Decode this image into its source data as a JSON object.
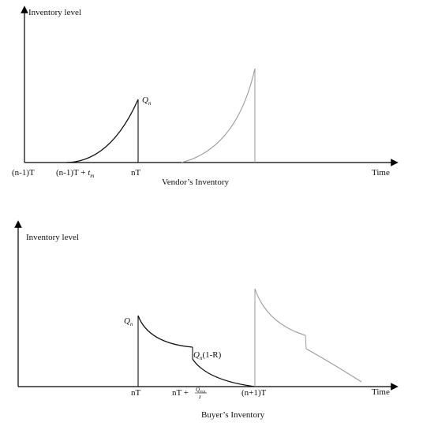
{
  "top_panel": {
    "y_axis_label": "Inventory level",
    "x_axis_label": "Time",
    "caption": "Vendor’s Inventory",
    "ticks": {
      "start": "(n-1)T",
      "prod_start_prefix": "(n-1)T + ",
      "prod_start_var": "t",
      "prod_start_sub": "m",
      "end": "nT"
    },
    "peak_var": "Q",
    "peak_sub": "n"
  },
  "bottom_panel": {
    "y_axis_label": "Inventory level",
    "x_axis_label": "Time",
    "caption": "Buyer’s Inventory",
    "ticks": {
      "start": "nT",
      "mid_prefix": "nT + ",
      "mid_num_var": "Q",
      "mid_num_sub": "m,n",
      "mid_den": "z",
      "end": "(n+1)T"
    },
    "peak_var": "Q",
    "peak_sub": "n",
    "after_return_var": "Q",
    "after_return_sub": "n",
    "after_return_suffix": "(1-R)"
  },
  "colors": {
    "axis": "#000000",
    "current_cycle": "#111111",
    "next_cycle": "#9a9a9a"
  }
}
